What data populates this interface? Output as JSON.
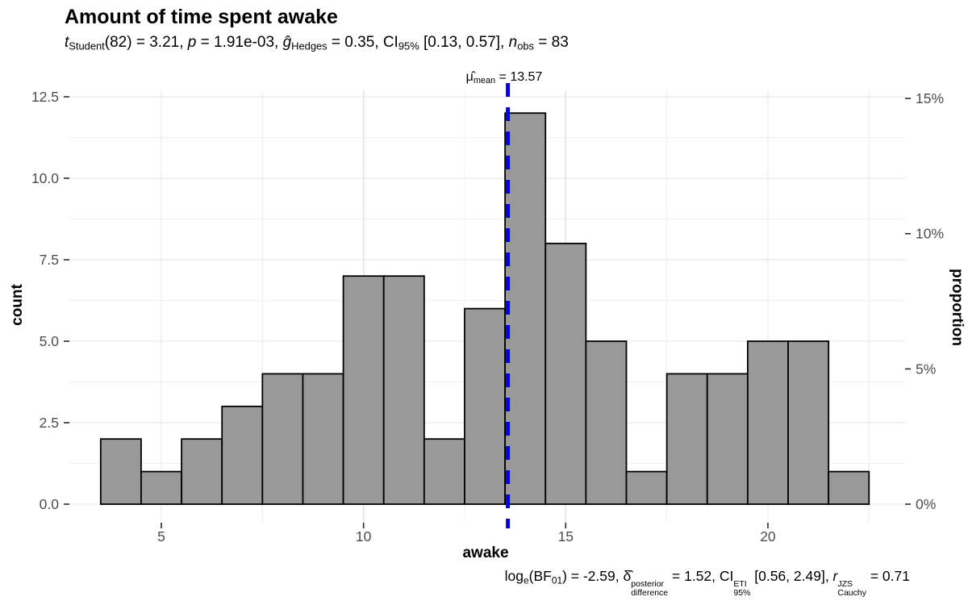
{
  "figure": {
    "title": "Amount of time spent awake"
  },
  "subtitle_segments": [
    {
      "t": "t",
      "s": "i"
    },
    {
      "t": "Student",
      "s": "sub"
    },
    {
      "t": "(82) = 3.21, ",
      "s": "n"
    },
    {
      "t": "p",
      "s": "i"
    },
    {
      "t": " = 1.91e-03, ",
      "s": "n"
    },
    {
      "t": "ĝ",
      "s": "i"
    },
    {
      "t": "Hedges",
      "s": "sub"
    },
    {
      "t": " = 0.35, CI",
      "s": "n"
    },
    {
      "t": "95%",
      "s": "sub"
    },
    {
      "t": " [0.13, 0.57], ",
      "s": "n"
    },
    {
      "t": "n",
      "s": "i"
    },
    {
      "t": "obs",
      "s": "sub"
    },
    {
      "t": " = 83",
      "s": "n"
    }
  ],
  "mean_label_segments": [
    {
      "t": "μ̂",
      "s": "n"
    },
    {
      "t": "mean",
      "s": "sub"
    },
    {
      "t": " = 13.57",
      "s": "n"
    }
  ],
  "caption_segments": [
    {
      "t": "log",
      "s": "n"
    },
    {
      "t": "e",
      "s": "sub"
    },
    {
      "t": "(BF",
      "s": "n"
    },
    {
      "t": "01",
      "s": "sub"
    },
    {
      "t": ") = -2.59, ",
      "s": "n"
    },
    {
      "t": "δ̂",
      "s": "n"
    },
    {
      "sup": "posterior",
      "sub": "difference"
    },
    {
      "t": " = 1.52, CI",
      "s": "n"
    },
    {
      "sup": "ETI",
      "sub": "95%"
    },
    {
      "t": " [0.56, 2.49], ",
      "s": "n"
    },
    {
      "t": "r",
      "s": "i"
    },
    {
      "sup": "JZS",
      "sub": "Cauchy"
    },
    {
      "t": " = 0.71",
      "s": "n"
    }
  ],
  "axes": {
    "x_title": "awake",
    "y_left_title": "count",
    "y_right_title": "proportion",
    "x_tick_labels": [
      "5",
      "10",
      "15",
      "20"
    ],
    "y_left_tick_labels": [
      "0.0",
      "2.5",
      "5.0",
      "7.5",
      "10.0",
      "12.5"
    ],
    "y_right_tick_labels": [
      "0%",
      "5%",
      "10%",
      "15%"
    ]
  },
  "stats": {
    "t_student": "3.21",
    "df": "82",
    "p": "1.91e-03",
    "hedges_g": "0.35",
    "ci_95": "[0.13, 0.57]",
    "n_obs": "83",
    "mu_mean": "13.57",
    "log_e_BF01": "-2.59",
    "delta_difference_posterior": "1.52",
    "ci_ETI_95": "[0.56, 2.49]",
    "r_cauchy_JZS": "0.71"
  },
  "chart_data": {
    "type": "bar",
    "subtype": "histogram",
    "title": "Amount of time spent awake",
    "xlabel": "awake",
    "ylabel": "count",
    "ylabel_right": "proportion",
    "bin_start": 3.5,
    "bin_width": 1,
    "bin_edges": [
      3.5,
      4.5,
      5.5,
      6.5,
      7.5,
      8.5,
      9.5,
      10.5,
      11.5,
      12.5,
      13.5,
      14.5,
      15.5,
      16.5,
      17.5,
      18.5,
      19.5,
      20.5,
      21.5,
      22.5
    ],
    "counts": [
      2,
      1,
      2,
      3,
      4,
      4,
      7,
      7,
      2,
      6,
      12,
      8,
      5,
      1,
      4,
      4,
      5,
      5,
      1
    ],
    "n_obs": 83,
    "mean_line_x": 13.57,
    "x_ticks": [
      5,
      10,
      15,
      20
    ],
    "y_ticks_left": [
      0,
      2.5,
      5,
      7.5,
      10,
      12.5
    ],
    "y_ticks_right_percent": [
      0,
      5,
      10,
      15
    ],
    "x_minor_gridlines": [
      7.5,
      12.5,
      17.5,
      22.5
    ],
    "y_minor_gridlines": [
      1.25,
      3.75,
      6.25,
      8.75,
      11.25
    ],
    "xlim": [
      2.74,
      23.26
    ],
    "ylim": [
      -0.65,
      13.27
    ],
    "grid": true,
    "legend": false
  },
  "colors": {
    "background": "#ffffff",
    "bar_fill": "#999999",
    "bar_stroke": "#000000",
    "mean_line": "#0000EE",
    "grid_major": "#e4e4e4",
    "grid_minor": "#f1f1f1",
    "axis_tick": "#2b2b2b",
    "tick_label": "#4d4d4d",
    "text": "#000000"
  }
}
